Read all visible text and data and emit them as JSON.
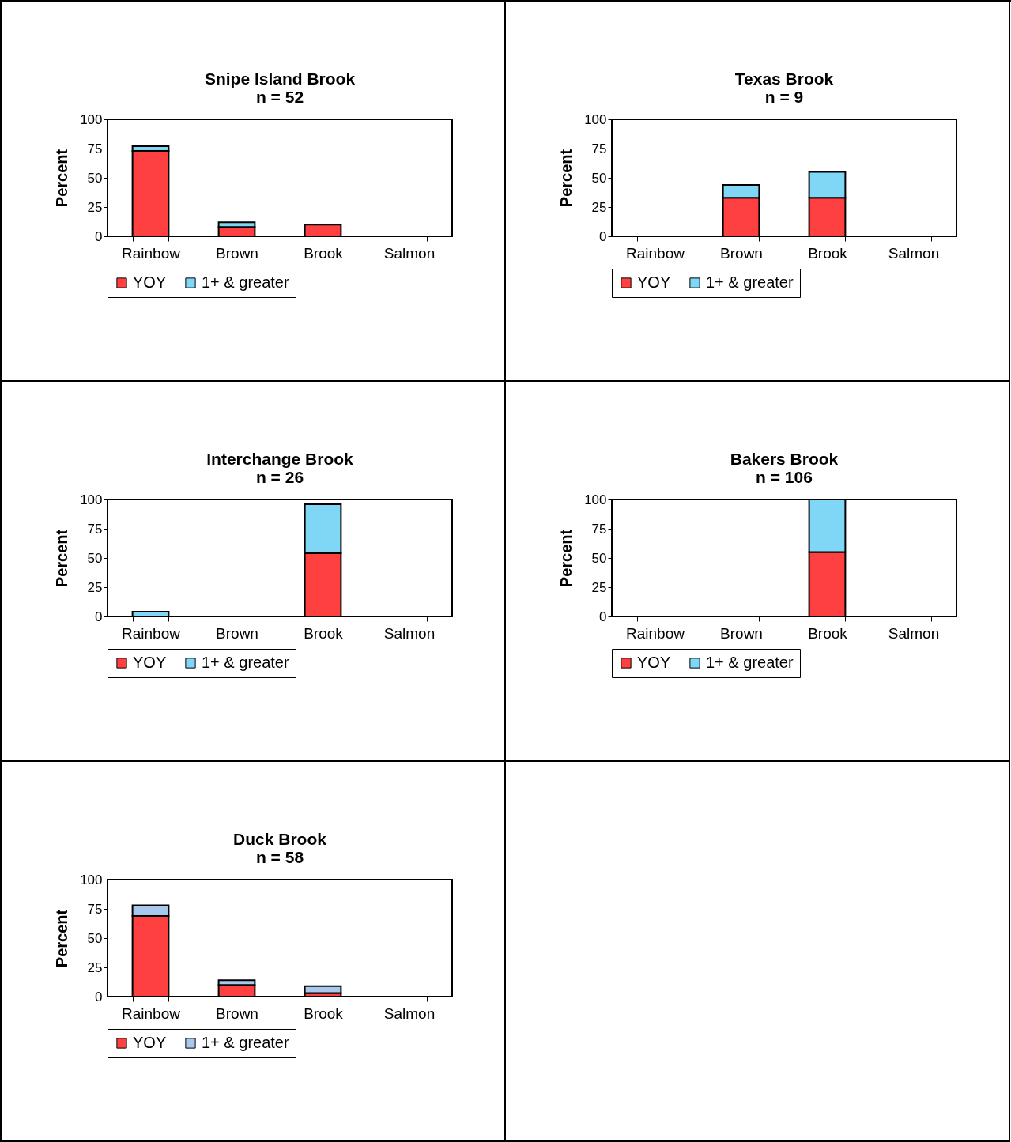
{
  "chart_data": [
    {
      "type": "bar",
      "title": "Snipe Island Brook",
      "subtitle": "n = 52",
      "ylabel": "Percent",
      "categories": [
        "Rainbow",
        "Brown",
        "Brook",
        "Salmon"
      ],
      "stacked": true,
      "ylim": [
        0,
        100
      ],
      "yticks": [
        0,
        25,
        50,
        75,
        100
      ],
      "legend": "bottom",
      "series": [
        {
          "name": "YOY",
          "color": "#ff4040",
          "values": [
            73,
            8,
            10,
            0
          ]
        },
        {
          "name": "1+ & greater",
          "color": "#7fd6f5",
          "values": [
            4,
            4,
            0,
            0
          ]
        }
      ]
    },
    {
      "type": "bar",
      "title": "Texas Brook",
      "subtitle": "n = 9",
      "ylabel": "Percent",
      "categories": [
        "Rainbow",
        "Brown",
        "Brook",
        "Salmon"
      ],
      "stacked": true,
      "ylim": [
        0,
        100
      ],
      "yticks": [
        0,
        25,
        50,
        75,
        100
      ],
      "legend": "bottom",
      "series": [
        {
          "name": "YOY",
          "color": "#ff4040",
          "values": [
            0,
            33,
            33,
            0
          ]
        },
        {
          "name": "1+ & greater",
          "color": "#7fd6f5",
          "values": [
            0,
            11,
            22,
            0
          ]
        }
      ]
    },
    {
      "type": "bar",
      "title": "Interchange Brook",
      "subtitle": "n = 26",
      "ylabel": "Percent",
      "categories": [
        "Rainbow",
        "Brown",
        "Brook",
        "Salmon"
      ],
      "stacked": true,
      "ylim": [
        0,
        100
      ],
      "yticks": [
        0,
        25,
        50,
        75,
        100
      ],
      "legend": "bottom",
      "series": [
        {
          "name": "YOY",
          "color": "#ff4040",
          "values": [
            0,
            0,
            54,
            0
          ]
        },
        {
          "name": "1+ & greater",
          "color": "#7fd6f5",
          "values": [
            4,
            0,
            42,
            0
          ]
        }
      ]
    },
    {
      "type": "bar",
      "title": "Bakers Brook",
      "subtitle": "n = 106",
      "ylabel": "Percent",
      "categories": [
        "Rainbow",
        "Brown",
        "Brook",
        "Salmon"
      ],
      "stacked": true,
      "ylim": [
        0,
        100
      ],
      "yticks": [
        0,
        25,
        50,
        75,
        100
      ],
      "legend": "bottom",
      "series": [
        {
          "name": "YOY",
          "color": "#ff4040",
          "values": [
            0,
            0,
            55,
            0
          ]
        },
        {
          "name": "1+ & greater",
          "color": "#7fd6f5",
          "values": [
            0,
            0,
            45,
            0
          ]
        }
      ]
    },
    {
      "type": "bar",
      "title": "Duck Brook",
      "subtitle": "n = 58",
      "ylabel": "Percent",
      "categories": [
        "Rainbow",
        "Brown",
        "Brook",
        "Salmon"
      ],
      "stacked": true,
      "ylim": [
        0,
        100
      ],
      "yticks": [
        0,
        25,
        50,
        75,
        100
      ],
      "legend": "bottom",
      "series": [
        {
          "name": "YOY",
          "color": "#ff4040",
          "values": [
            69,
            10,
            3,
            0
          ]
        },
        {
          "name": "1+ & greater",
          "color": "#a9c8ee",
          "values": [
            9,
            4,
            6,
            0
          ]
        }
      ]
    }
  ]
}
